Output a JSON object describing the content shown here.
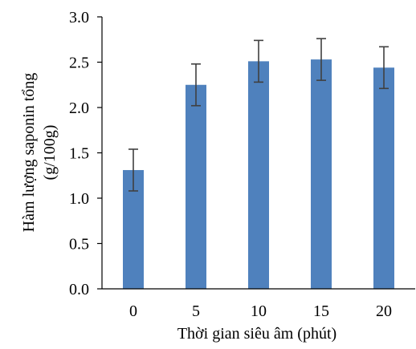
{
  "chart_data": {
    "type": "bar",
    "categories": [
      "0",
      "5",
      "10",
      "15",
      "20"
    ],
    "values": [
      1.31,
      2.25,
      2.51,
      2.53,
      2.44
    ],
    "errors": [
      0.23,
      0.23,
      0.23,
      0.23,
      0.23
    ],
    "xlabel": "Thời gian siêu âm (phút)",
    "ylabel_line1": "Hàm lượng saponin tổng",
    "ylabel_line2": "(g/100g)",
    "ylim": [
      0,
      3.0
    ],
    "yticks": [
      "0.0",
      "0.5",
      "1.0",
      "1.5",
      "2.0",
      "2.5",
      "3.0"
    ],
    "grid": false,
    "bar_color": "#4f81bd",
    "error_color": "#404040"
  }
}
